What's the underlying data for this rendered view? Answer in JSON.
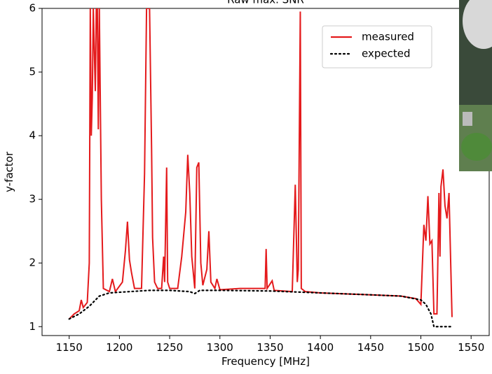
{
  "chart_data": {
    "type": "line",
    "title": "Raw max. SNR",
    "xlabel": "Frequency [MHz]",
    "ylabel": "y-factor",
    "xlim": [
      1123,
      1568
    ],
    "ylim": [
      0.86,
      6.0
    ],
    "xticks": [
      1150,
      1200,
      1250,
      1300,
      1350,
      1400,
      1450,
      1500,
      1550
    ],
    "yticks": [
      1,
      2,
      3,
      4,
      5,
      6
    ],
    "legend": "upper right",
    "series": [
      {
        "name": "measured",
        "color": "#e41a1c",
        "style": "solid",
        "x": [
          1150,
          1155,
          1160,
          1162,
          1164,
          1168,
          1170,
          1171,
          1172,
          1173,
          1174,
          1176,
          1177,
          1178,
          1179,
          1180,
          1182,
          1184,
          1190,
          1193,
          1196,
          1203,
          1206,
          1208,
          1210,
          1212,
          1215,
          1222,
          1225,
          1227,
          1230,
          1232,
          1233,
          1235,
          1238,
          1242,
          1244,
          1245,
          1247,
          1248,
          1250,
          1258,
          1262,
          1266,
          1268,
          1270,
          1272,
          1275,
          1277,
          1279,
          1281,
          1283,
          1287,
          1289,
          1291,
          1295,
          1297,
          1300,
          1320,
          1345,
          1346,
          1347,
          1352,
          1354,
          1372,
          1375,
          1377,
          1378,
          1380,
          1381,
          1385,
          1400,
          1450,
          1480,
          1495,
          1500,
          1503,
          1505,
          1507,
          1509,
          1511,
          1513,
          1516,
          1518,
          1519,
          1520,
          1522,
          1524,
          1526,
          1528,
          1531
        ],
        "values": [
          1.12,
          1.2,
          1.25,
          1.42,
          1.3,
          1.38,
          2.0,
          6.0,
          4.0,
          4.6,
          6.0,
          4.7,
          6.0,
          6.0,
          4.1,
          6.0,
          3.0,
          1.6,
          1.55,
          1.75,
          1.55,
          1.7,
          2.2,
          2.65,
          2.05,
          1.85,
          1.6,
          1.6,
          3.4,
          6.0,
          6.0,
          3.8,
          2.4,
          1.7,
          1.6,
          1.6,
          2.1,
          1.7,
          3.5,
          1.7,
          1.6,
          1.6,
          2.1,
          2.8,
          3.7,
          3.1,
          2.1,
          1.6,
          3.5,
          3.58,
          2.0,
          1.65,
          1.9,
          2.5,
          1.7,
          1.6,
          1.75,
          1.58,
          1.6,
          1.6,
          2.22,
          1.6,
          1.72,
          1.57,
          1.55,
          3.23,
          1.7,
          1.9,
          5.95,
          1.6,
          1.55,
          1.53,
          1.5,
          1.48,
          1.44,
          1.35,
          2.6,
          2.35,
          3.05,
          2.3,
          2.35,
          1.2,
          1.2,
          3.1,
          2.1,
          3.2,
          3.47,
          2.9,
          2.7,
          3.1,
          1.15
        ]
      },
      {
        "name": "expected",
        "color": "#000000",
        "style": "dotted",
        "x": [
          1150,
          1160,
          1170,
          1180,
          1190,
          1200,
          1210,
          1220,
          1230,
          1250,
          1270,
          1275,
          1280,
          1300,
          1350,
          1400,
          1450,
          1480,
          1500,
          1505,
          1510,
          1513,
          1530
        ],
        "values": [
          1.12,
          1.2,
          1.32,
          1.48,
          1.53,
          1.54,
          1.55,
          1.56,
          1.57,
          1.57,
          1.55,
          1.52,
          1.57,
          1.57,
          1.56,
          1.53,
          1.5,
          1.48,
          1.42,
          1.35,
          1.2,
          1.0,
          1.0
        ]
      }
    ]
  }
}
